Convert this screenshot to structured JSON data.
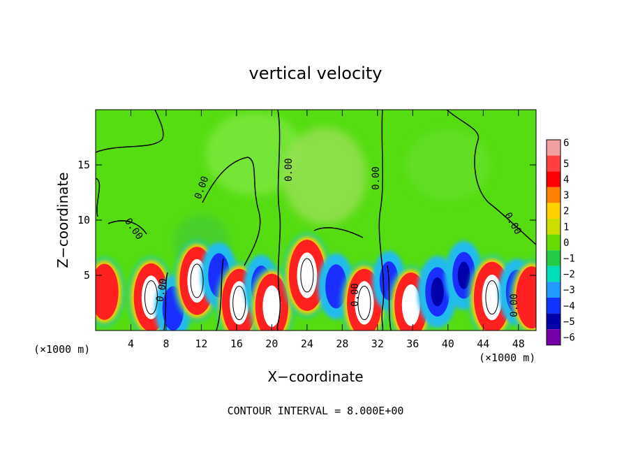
{
  "chart_data": {
    "type": "heatmap",
    "title": "vertical velocity",
    "xlabel": "X−coordinate",
    "ylabel": "Z−coordinate",
    "x_unit_left": "(×1000 m)",
    "x_unit_right": "(×1000 m)",
    "xlim": [
      0,
      50
    ],
    "ylim": [
      0,
      20
    ],
    "x_ticks": [
      4,
      8,
      12,
      16,
      20,
      24,
      28,
      32,
      36,
      40,
      44,
      48
    ],
    "y_ticks": [
      5,
      10,
      15
    ],
    "footer": "CONTOUR INTERVAL = 8.000E+00",
    "contour_label": "0.00",
    "grid": false,
    "colorbar": {
      "position": "right",
      "tick_labels": [
        "6",
        "5",
        "4",
        "3",
        "2",
        "1",
        "0",
        "−1",
        "−2",
        "−3",
        "−4",
        "−5",
        "−6"
      ],
      "colors": [
        "#f0a0a0",
        "#ff4040",
        "#ff0000",
        "#ff8000",
        "#ffd000",
        "#ccdd00",
        "#66dd00",
        "#22cc44",
        "#00ddbb",
        "#2299ff",
        "#1133ff",
        "#0000aa",
        "#7700aa"
      ]
    },
    "features": [
      {
        "x": 1.0,
        "z": 3.5,
        "w": 3.5
      },
      {
        "x": 6.3,
        "z": 3.0,
        "w": 5.5
      },
      {
        "x": 8.8,
        "z": 2.0,
        "w": -3.5
      },
      {
        "x": 11.5,
        "z": 4.5,
        "w": 5.5
      },
      {
        "x": 14.0,
        "z": 5.0,
        "w": -3.5
      },
      {
        "x": 16.3,
        "z": 2.5,
        "w": 5.5
      },
      {
        "x": 18.8,
        "z": 4.0,
        "w": -3.0
      },
      {
        "x": 20.0,
        "z": 2.2,
        "w": 5.0
      },
      {
        "x": 24.0,
        "z": 5.0,
        "w": 6.0
      },
      {
        "x": 27.3,
        "z": 4.0,
        "w": -3.5
      },
      {
        "x": 30.5,
        "z": 2.5,
        "w": 5.5
      },
      {
        "x": 33.3,
        "z": 4.5,
        "w": -2.5
      },
      {
        "x": 35.8,
        "z": 2.3,
        "w": 5.0
      },
      {
        "x": 38.8,
        "z": 3.5,
        "w": -4.5
      },
      {
        "x": 41.8,
        "z": 5.0,
        "w": -4.0
      },
      {
        "x": 45.0,
        "z": 3.0,
        "w": 6.0
      },
      {
        "x": 47.8,
        "z": 3.5,
        "w": -3.5
      },
      {
        "x": 49.5,
        "z": 3.0,
        "w": 4.5
      }
    ]
  }
}
